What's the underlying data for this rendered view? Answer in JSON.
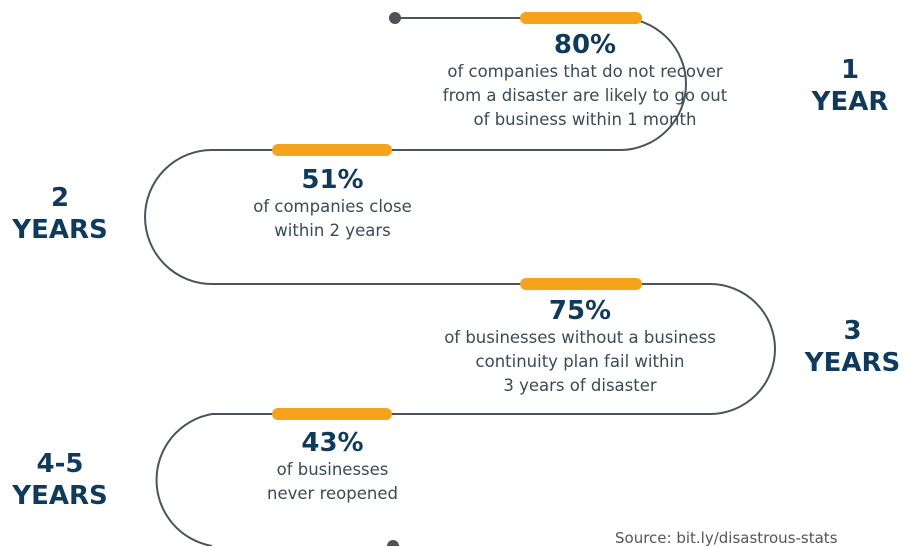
{
  "colors": {
    "path": "#4d5358",
    "accent": "#f5a21d",
    "heading": "#0f3a5c",
    "text": "#3a4a56"
  },
  "milestones": [
    {
      "percent": "80%",
      "description_lines": [
        "of companies that do not recover",
        "from a disaster are likely to go out",
        "of business within 1 month"
      ],
      "period": [
        "1",
        "YEAR"
      ]
    },
    {
      "percent": "51%",
      "description_lines": [
        "of companies close",
        "within 2 years"
      ],
      "period": [
        "2",
        "YEARS"
      ]
    },
    {
      "percent": "75%",
      "description_lines": [
        "of businesses without a business",
        "continuity plan fail within",
        "3 years of disaster"
      ],
      "period": [
        "3",
        "YEARS"
      ]
    },
    {
      "percent": "43%",
      "description_lines": [
        "of businesses",
        "never reopened"
      ],
      "period": [
        "4-5",
        "YEARS"
      ]
    }
  ],
  "source": "Source: bit.ly/disastrous-stats"
}
